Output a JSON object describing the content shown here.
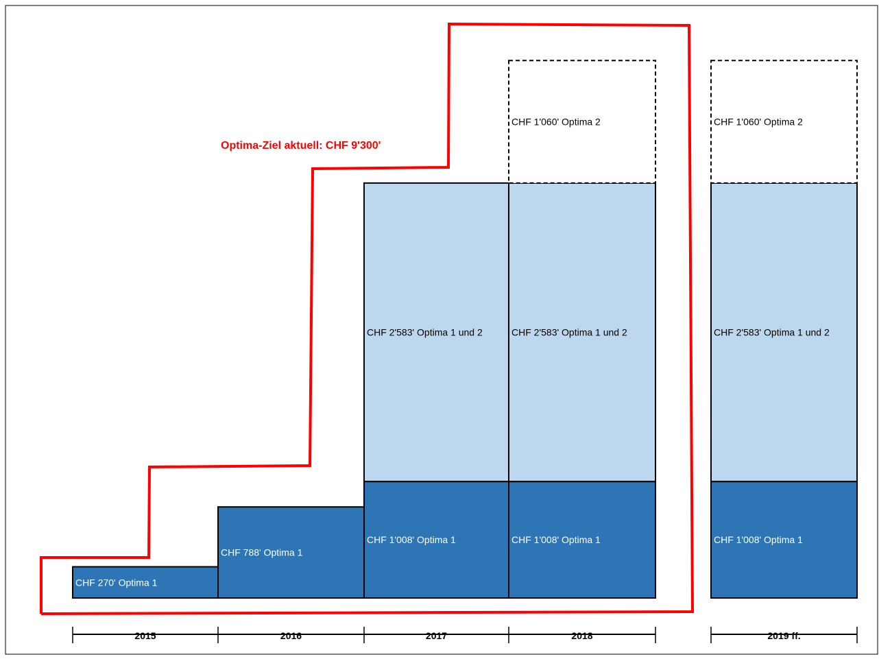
{
  "colors": {
    "optima1": "#2E75B6",
    "optima1und2": "#BDD7EE",
    "optima2": "#FFFFFF",
    "target_outline": "#FF0000",
    "outline": "#000000"
  },
  "chart_data": {
    "type": "bar",
    "stacked": true,
    "categories": [
      "2015",
      "2016",
      "2017",
      "2018",
      "2019 ff."
    ],
    "series": [
      {
        "key": "optima1",
        "values": [
          270,
          788,
          1008,
          1008,
          1008
        ],
        "labels": [
          "CHF 270' Optima 1",
          "CHF 788' Optima 1",
          "CHF 1'008' Optima 1",
          "CHF 1'008' Optima 1",
          "CHF 1'008' Optima 1"
        ]
      },
      {
        "key": "optima1und2",
        "values": [
          0,
          0,
          2583,
          2583,
          2583
        ],
        "labels": [
          "",
          "",
          "CHF 2'583' Optima 1 und 2",
          "CHF 2'583' Optima 1 und 2",
          "CHF 2'583' Optima 1 und 2"
        ]
      },
      {
        "key": "optima2",
        "dashed": true,
        "values": [
          0,
          0,
          0,
          1060,
          1060
        ],
        "labels": [
          "",
          "",
          "",
          "CHF 1'060' Optima 2",
          "CHF 1'060' Optima 2"
        ]
      }
    ],
    "target": {
      "label": "Optima-Ziel aktuell: CHF 9'300'",
      "value": 9300,
      "applies_to": [
        "2015",
        "2016",
        "2017",
        "2018"
      ]
    },
    "axis_gap_before": "2019 ff."
  }
}
